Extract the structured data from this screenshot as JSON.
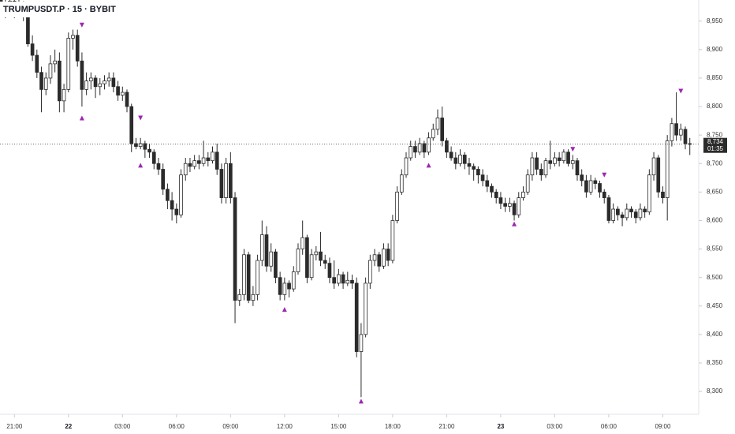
{
  "chart_data": {
    "type": "candlestick",
    "title": "TRUMPUSDT.P · 15 · BYBIT",
    "up_color": "#ffffff",
    "down_color": "#2b2b2b",
    "edge_color": "#2b2b2b",
    "marker_color": "#9c27b0",
    "xlim": [
      -0.2,
      154.8
    ],
    "ylim": [
      8260,
      8987
    ],
    "xticks": [
      {
        "value": 3,
        "label": "21:00"
      },
      {
        "value": 15,
        "label": "22"
      },
      {
        "value": 27,
        "label": "03:00"
      },
      {
        "value": 39,
        "label": "06:00"
      },
      {
        "value": 51,
        "label": "09:00"
      },
      {
        "value": 63,
        "label": "12:00"
      },
      {
        "value": 75,
        "label": "15:00"
      },
      {
        "value": 87,
        "label": "18:00"
      },
      {
        "value": 99,
        "label": "21:00"
      },
      {
        "value": 111,
        "label": "23"
      },
      {
        "value": 123,
        "label": "03:00"
      },
      {
        "value": 135,
        "label": "06:00"
      },
      {
        "value": 147,
        "label": "09:00"
      }
    ],
    "yticks": [
      {
        "value": 8300,
        "label": "8,300"
      },
      {
        "value": 8350,
        "label": "8,350"
      },
      {
        "value": 8400,
        "label": "8,400"
      },
      {
        "value": 8450,
        "label": "8,450"
      },
      {
        "value": 8500,
        "label": "8,500"
      },
      {
        "value": 8550,
        "label": "8,550"
      },
      {
        "value": 8600,
        "label": "8,600"
      },
      {
        "value": 8650,
        "label": "8,650"
      },
      {
        "value": 8700,
        "label": "8,700"
      },
      {
        "value": 8750,
        "label": "8,750"
      },
      {
        "value": 8800,
        "label": "8,800"
      },
      {
        "value": 8850,
        "label": "8,850"
      },
      {
        "value": 8900,
        "label": "8,900"
      },
      {
        "value": 8950,
        "label": "8,950"
      }
    ],
    "last_price": {
      "value": 8734,
      "label": "8,734"
    },
    "countdown": "01:35",
    "ohlc": [
      [
        8990,
        8995,
        8960,
        8975
      ],
      [
        8975,
        8990,
        8955,
        8965
      ],
      [
        8965,
        8995,
        8960,
        8985
      ],
      [
        8985,
        8992,
        8955,
        8970
      ],
      [
        8970,
        8988,
        8960,
        8980
      ],
      [
        8980,
        8985,
        8950,
        8965
      ],
      [
        8965,
        8970,
        8905,
        8910
      ],
      [
        8910,
        8925,
        8880,
        8890
      ],
      [
        8890,
        8900,
        8850,
        8860
      ],
      [
        8860,
        8870,
        8790,
        8830
      ],
      [
        8830,
        8860,
        8820,
        8850
      ],
      [
        8850,
        8890,
        8840,
        8875
      ],
      [
        8875,
        8900,
        8860,
        8880
      ],
      [
        8880,
        8895,
        8790,
        8810
      ],
      [
        8810,
        8840,
        8790,
        8830
      ],
      [
        8830,
        8930,
        8825,
        8920
      ],
      [
        8920,
        8935,
        8900,
        8925
      ],
      [
        8925,
        8935,
        8870,
        8880
      ],
      [
        8880,
        8895,
        8800,
        8830
      ],
      [
        8830,
        8860,
        8820,
        8845
      ],
      [
        8845,
        8860,
        8830,
        8850
      ],
      [
        8850,
        8855,
        8815,
        8835
      ],
      [
        8835,
        8850,
        8820,
        8840
      ],
      [
        8840,
        8855,
        8830,
        8845
      ],
      [
        8845,
        8860,
        8835,
        8850
      ],
      [
        8850,
        8860,
        8825,
        8835
      ],
      [
        8835,
        8845,
        8810,
        8820
      ],
      [
        8820,
        8835,
        8810,
        8825
      ],
      [
        8825,
        8830,
        8790,
        8800
      ],
      [
        8800,
        8805,
        8720,
        8735
      ],
      [
        8735,
        8745,
        8725,
        8730
      ],
      [
        8730,
        8745,
        8725,
        8735
      ],
      [
        8735,
        8740,
        8710,
        8725
      ],
      [
        8725,
        8735,
        8710,
        8720
      ],
      [
        8720,
        8725,
        8690,
        8700
      ],
      [
        8700,
        8710,
        8680,
        8690
      ],
      [
        8690,
        8700,
        8645,
        8655
      ],
      [
        8655,
        8665,
        8620,
        8635
      ],
      [
        8635,
        8650,
        8600,
        8620
      ],
      [
        8620,
        8630,
        8595,
        8610
      ],
      [
        8610,
        8690,
        8605,
        8680
      ],
      [
        8680,
        8710,
        8670,
        8700
      ],
      [
        8700,
        8710,
        8685,
        8695
      ],
      [
        8695,
        8715,
        8690,
        8705
      ],
      [
        8705,
        8715,
        8690,
        8700
      ],
      [
        8700,
        8740,
        8695,
        8710
      ],
      [
        8710,
        8720,
        8695,
        8705
      ],
      [
        8705,
        8730,
        8700,
        8720
      ],
      [
        8720,
        8735,
        8680,
        8690
      ],
      [
        8690,
        8700,
        8630,
        8640
      ],
      [
        8640,
        8710,
        8630,
        8700
      ],
      [
        8700,
        8720,
        8630,
        8640
      ],
      [
        8640,
        8650,
        8420,
        8460
      ],
      [
        8460,
        8480,
        8450,
        8470
      ],
      [
        8470,
        8550,
        8460,
        8540
      ],
      [
        8540,
        8545,
        8455,
        8460
      ],
      [
        8460,
        8485,
        8450,
        8470
      ],
      [
        8470,
        8540,
        8460,
        8530
      ],
      [
        8530,
        8600,
        8520,
        8575
      ],
      [
        8575,
        8590,
        8510,
        8520
      ],
      [
        8520,
        8560,
        8510,
        8545
      ],
      [
        8545,
        8550,
        8490,
        8500
      ],
      [
        8500,
        8510,
        8460,
        8470
      ],
      [
        8470,
        8500,
        8460,
        8490
      ],
      [
        8490,
        8495,
        8465,
        8480
      ],
      [
        8480,
        8520,
        8475,
        8510
      ],
      [
        8510,
        8560,
        8505,
        8550
      ],
      [
        8550,
        8600,
        8540,
        8570
      ],
      [
        8570,
        8575,
        8490,
        8500
      ],
      [
        8500,
        8550,
        8495,
        8540
      ],
      [
        8540,
        8555,
        8530,
        8545
      ],
      [
        8545,
        8580,
        8520,
        8530
      ],
      [
        8530,
        8540,
        8515,
        8525
      ],
      [
        8525,
        8535,
        8490,
        8500
      ],
      [
        8500,
        8530,
        8480,
        8490
      ],
      [
        8490,
        8515,
        8485,
        8505
      ],
      [
        8505,
        8510,
        8480,
        8490
      ],
      [
        8490,
        8510,
        8485,
        8495
      ],
      [
        8495,
        8505,
        8480,
        8490
      ],
      [
        8490,
        8500,
        8360,
        8370
      ],
      [
        8370,
        8420,
        8290,
        8400
      ],
      [
        8400,
        8500,
        8395,
        8490
      ],
      [
        8490,
        8540,
        8480,
        8530
      ],
      [
        8530,
        8550,
        8520,
        8540
      ],
      [
        8540,
        8545,
        8510,
        8520
      ],
      [
        8520,
        8560,
        8515,
        8550
      ],
      [
        8550,
        8560,
        8520,
        8530
      ],
      [
        8530,
        8610,
        8525,
        8600
      ],
      [
        8600,
        8660,
        8595,
        8650
      ],
      [
        8650,
        8690,
        8645,
        8680
      ],
      [
        8680,
        8720,
        8675,
        8710
      ],
      [
        8710,
        8740,
        8705,
        8730
      ],
      [
        8730,
        8740,
        8710,
        8720
      ],
      [
        8720,
        8745,
        8715,
        8735
      ],
      [
        8735,
        8740,
        8710,
        8720
      ],
      [
        8720,
        8755,
        8715,
        8745
      ],
      [
        8745,
        8770,
        8740,
        8760
      ],
      [
        8760,
        8795,
        8750,
        8780
      ],
      [
        8780,
        8800,
        8730,
        8740
      ],
      [
        8740,
        8745,
        8710,
        8720
      ],
      [
        8720,
        8730,
        8705,
        8710
      ],
      [
        8710,
        8720,
        8690,
        8700
      ],
      [
        8700,
        8725,
        8695,
        8715
      ],
      [
        8715,
        8720,
        8690,
        8700
      ],
      [
        8700,
        8710,
        8680,
        8695
      ],
      [
        8695,
        8700,
        8670,
        8690
      ],
      [
        8690,
        8695,
        8665,
        8680
      ],
      [
        8680,
        8690,
        8660,
        8670
      ],
      [
        8670,
        8680,
        8650,
        8660
      ],
      [
        8660,
        8665,
        8640,
        8650
      ],
      [
        8650,
        8655,
        8630,
        8640
      ],
      [
        8640,
        8650,
        8620,
        8630
      ],
      [
        8630,
        8640,
        8615,
        8625
      ],
      [
        8625,
        8640,
        8615,
        8630
      ],
      [
        8630,
        8635,
        8600,
        8610
      ],
      [
        8610,
        8650,
        8605,
        8640
      ],
      [
        8640,
        8660,
        8635,
        8650
      ],
      [
        8650,
        8690,
        8645,
        8680
      ],
      [
        8680,
        8720,
        8670,
        8710
      ],
      [
        8710,
        8720,
        8680,
        8690
      ],
      [
        8690,
        8700,
        8670,
        8680
      ],
      [
        8680,
        8710,
        8675,
        8705
      ],
      [
        8705,
        8740,
        8690,
        8700
      ],
      [
        8700,
        8720,
        8695,
        8710
      ],
      [
        8710,
        8720,
        8695,
        8705
      ],
      [
        8705,
        8725,
        8700,
        8720
      ],
      [
        8720,
        8725,
        8695,
        8700
      ],
      [
        8700,
        8715,
        8690,
        8705
      ],
      [
        8705,
        8710,
        8670,
        8680
      ],
      [
        8680,
        8690,
        8660,
        8670
      ],
      [
        8670,
        8680,
        8640,
        8650
      ],
      [
        8650,
        8680,
        8645,
        8670
      ],
      [
        8670,
        8675,
        8655,
        8665
      ],
      [
        8665,
        8670,
        8640,
        8650
      ],
      [
        8650,
        8655,
        8630,
        8640
      ],
      [
        8640,
        8645,
        8595,
        8600
      ],
      [
        8600,
        8630,
        8595,
        8620
      ],
      [
        8620,
        8625,
        8600,
        8610
      ],
      [
        8610,
        8615,
        8590,
        8605
      ],
      [
        8605,
        8630,
        8600,
        8620
      ],
      [
        8620,
        8625,
        8605,
        8615
      ],
      [
        8615,
        8620,
        8595,
        8605
      ],
      [
        8605,
        8630,
        8600,
        8620
      ],
      [
        8620,
        8625,
        8605,
        8615
      ],
      [
        8615,
        8690,
        8610,
        8680
      ],
      [
        8680,
        8720,
        8670,
        8710
      ],
      [
        8710,
        8715,
        8640,
        8650
      ],
      [
        8650,
        8660,
        8630,
        8640
      ],
      [
        8640,
        8750,
        8600,
        8740
      ],
      [
        8740,
        8780,
        8730,
        8770
      ],
      [
        8770,
        8825,
        8740,
        8750
      ],
      [
        8750,
        8770,
        8740,
        8760
      ],
      [
        8760,
        8765,
        8725,
        8735
      ],
      [
        8735,
        8745,
        8715,
        8734
      ]
    ],
    "sell_markers": {
      "x": [
        18,
        31,
        127,
        134,
        151
      ],
      "y": [
        8943,
        8780,
        8725,
        8680,
        8827
      ]
    },
    "buy_markers": {
      "x": [
        18,
        31,
        63,
        80,
        95,
        114
      ],
      "y": [
        8780,
        8697,
        8444,
        8283,
        8697,
        8594
      ]
    }
  }
}
